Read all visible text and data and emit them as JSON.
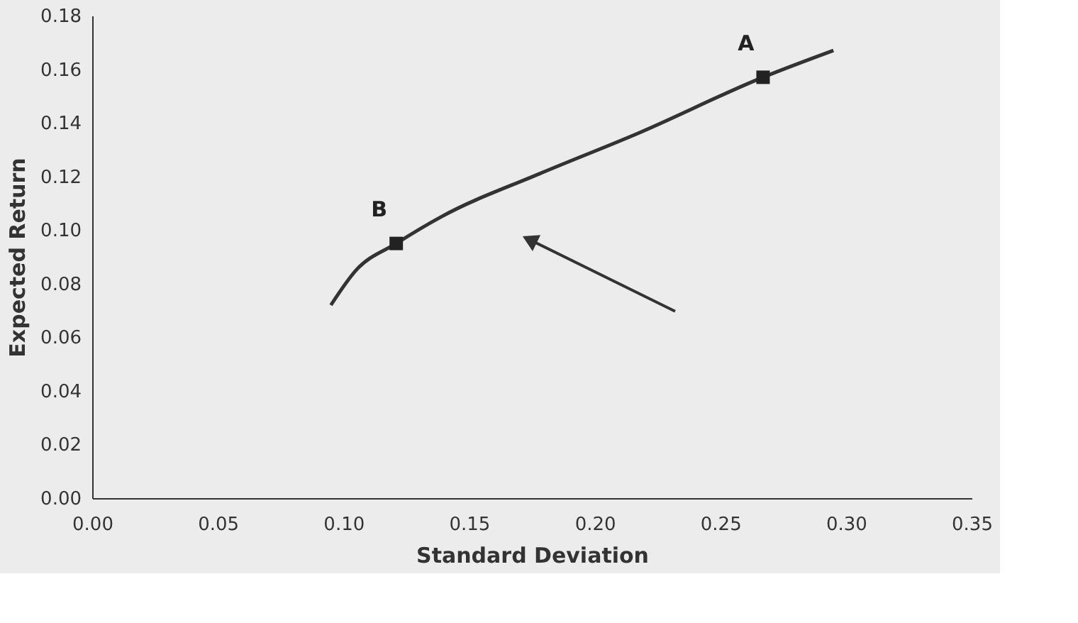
{
  "chart_data": {
    "type": "line",
    "xlabel": "Standard Deviation",
    "ylabel": "Expected Return",
    "xlim": [
      0,
      0.35
    ],
    "xticks": [
      {
        "value": 0,
        "label": "0.00"
      },
      {
        "value": 0.05,
        "label": "0.05"
      },
      {
        "value": 0.1,
        "label": "0.10"
      },
      {
        "value": 0.15,
        "label": "0.15"
      },
      {
        "value": 0.2,
        "label": "0.20"
      },
      {
        "value": 0.25,
        "label": "0.25"
      },
      {
        "value": 0.3,
        "label": "0.30"
      },
      {
        "value": 0.35,
        "label": "0.35"
      }
    ],
    "ylim": [
      0,
      0.18
    ],
    "yticks": [
      {
        "value": 0,
        "label": "0.00"
      },
      {
        "value": 0.02,
        "label": "0.02"
      },
      {
        "value": 0.04,
        "label": "0.04"
      },
      {
        "value": 0.06,
        "label": "0.06"
      },
      {
        "value": 0.08,
        "label": "0.08"
      },
      {
        "value": 0.1,
        "label": "0.10"
      },
      {
        "value": 0.12,
        "label": "0.12"
      },
      {
        "value": 0.14,
        "label": "0.14"
      },
      {
        "value": 0.16,
        "label": "0.16"
      },
      {
        "value": 0.18,
        "label": "0.18"
      }
    ],
    "series": [
      {
        "color": "#333333",
        "marker": "none",
        "x": [
          0.095,
          0.105,
          0.121,
          0.139,
          0.178,
          0.217,
          0.267,
          0.295
        ],
        "values": [
          0.072,
          0.085,
          0.095,
          0.105,
          0.121,
          0.136,
          0.157,
          0.167
        ]
      },
      {
        "type": "scatter",
        "color": "#222222",
        "marker": "square",
        "x": [
          0.121,
          0.267
        ],
        "values": [
          0.095,
          0.157
        ]
      },
      {
        "marker": "triangle",
        "color": "#333333",
        "x": [
          0.232,
          0.175
        ],
        "values": [
          0.0697,
          0.096
        ]
      }
    ],
    "annotations": [
      {
        "text": "B",
        "x": 0.121,
        "y": 0.095
      },
      {
        "text": "A",
        "x": 0.267,
        "y": 0.157
      }
    ]
  }
}
